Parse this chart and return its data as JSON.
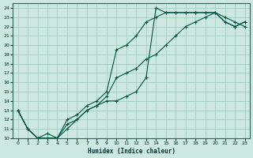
{
  "xlabel": "Humidex (Indice chaleur)",
  "bg_color": "#cce8e0",
  "grid_color": "#99ccbb",
  "line_color": "#005544",
  "xlim": [
    -0.5,
    23.5
  ],
  "ylim": [
    10,
    24.5
  ],
  "xticks": [
    0,
    1,
    2,
    3,
    4,
    5,
    6,
    7,
    8,
    9,
    10,
    11,
    12,
    13,
    14,
    15,
    16,
    17,
    18,
    19,
    20,
    21,
    22,
    23
  ],
  "yticks": [
    10,
    11,
    12,
    13,
    14,
    15,
    16,
    17,
    18,
    19,
    20,
    21,
    22,
    23,
    24
  ],
  "line1_x": [
    0,
    1,
    2,
    3,
    4,
    5,
    6,
    7,
    8,
    9,
    10,
    11,
    12,
    13,
    14,
    15,
    16,
    17,
    18,
    19,
    20,
    21,
    22,
    23
  ],
  "line1_y": [
    13.0,
    11.0,
    10.0,
    10.5,
    10.0,
    11.5,
    12.0,
    13.0,
    13.5,
    14.0,
    14.0,
    14.5,
    15.0,
    16.5,
    24.0,
    23.5,
    23.5,
    23.5,
    23.5,
    23.5,
    23.5,
    22.5,
    22.0,
    22.5
  ],
  "line2_x": [
    0,
    1,
    2,
    3,
    4,
    5,
    6,
    7,
    8,
    9,
    10,
    11,
    12,
    13,
    14,
    15,
    16,
    17,
    18,
    19,
    20,
    21,
    22,
    23
  ],
  "line2_y": [
    13.0,
    11.0,
    10.0,
    10.0,
    10.0,
    11.0,
    12.0,
    13.0,
    13.5,
    14.5,
    16.5,
    17.0,
    17.5,
    18.5,
    19.0,
    20.0,
    21.0,
    22.0,
    22.5,
    23.0,
    23.5,
    22.5,
    22.0,
    22.5
  ],
  "line3_x": [
    0,
    1,
    2,
    3,
    4,
    5,
    6,
    7,
    8,
    9,
    10,
    11,
    12,
    13,
    14,
    15,
    16,
    17,
    18,
    19,
    20,
    21,
    22,
    23
  ],
  "line3_y": [
    13.0,
    11.0,
    10.0,
    10.0,
    10.0,
    12.0,
    12.5,
    13.5,
    14.0,
    15.0,
    19.5,
    20.0,
    21.0,
    22.5,
    23.0,
    23.5,
    23.5,
    23.5,
    23.5,
    23.5,
    23.5,
    23.0,
    22.5,
    22.0
  ]
}
